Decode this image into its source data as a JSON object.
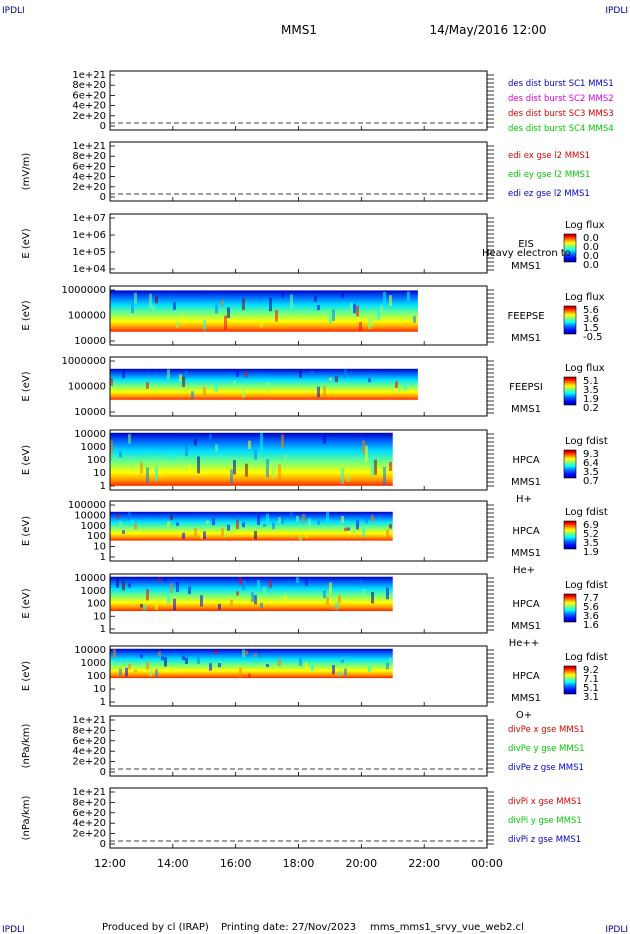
{
  "header": {
    "corner_tl": "IPDLI",
    "corner_tr": "IPDLI",
    "corner_bl": "IPDLI",
    "corner_br": "IPDLI",
    "mission": "MMS1",
    "date": "14/May/2016 12:00"
  },
  "footer": {
    "produced": "Produced by cl (IRAP)",
    "printing": "Printing date: 27/Nov/2023",
    "file": "mms_mms1_srvy_vue_web2.cl"
  },
  "colors": {
    "red": "#dd0000",
    "magenta": "#dd00dd",
    "green": "#00cc00",
    "blue": "#0000cc",
    "colorbar": [
      "#000090",
      "#0000ff",
      "#0080ff",
      "#00ffff",
      "#80ff80",
      "#ffff00",
      "#ff8000",
      "#ff0000",
      "#800000"
    ]
  },
  "chart_data": {
    "type": "heatmap",
    "x": {
      "ticks": [
        "12:00",
        "14:00",
        "16:00",
        "18:00",
        "20:00",
        "22:00",
        "00:00"
      ],
      "range_hours": [
        12,
        24
      ]
    },
    "panels": [
      {
        "kind": "line",
        "ylabel": "",
        "ticks": [
          "1e+21",
          "8e+20",
          "6e+20",
          "4e+20",
          "2e+20",
          "0"
        ],
        "ylim": [
          0,
          1e+21
        ],
        "legend": [
          {
            "text": "des dist burst SC1 MMS1",
            "color": "blue"
          },
          {
            "text": "des dist burst SC2 MMS2",
            "color": "magenta"
          },
          {
            "text": "des dist burst SC3 MMS3",
            "color": "red"
          },
          {
            "text": "des dist burst SC4 MMS4",
            "color": "green"
          }
        ]
      },
      {
        "kind": "line",
        "ylabel": "(mV/m)",
        "ticks": [
          "1e+21",
          "8e+20",
          "6e+20",
          "4e+20",
          "2e+20",
          "0"
        ],
        "ylim": [
          0,
          1e+21
        ],
        "legend": [
          {
            "text": "edi ex gse l2 MMS1",
            "color": "red"
          },
          {
            "text": "edi ey gse l2 MMS1",
            "color": "green"
          },
          {
            "text": "edi ez gse l2 MMS1",
            "color": "blue"
          }
        ]
      },
      {
        "kind": "spectrogram",
        "ylabel": "E (eV)",
        "ticks": [
          "1e+07",
          "1e+06",
          "1e+05",
          "1e+04"
        ],
        "log_range": [
          4,
          7
        ],
        "instrument": "EIS",
        "sc": "MMS1",
        "species": "",
        "extra": "Heavy electron to",
        "cb_title": "Log flux",
        "cb_values": [
          "0.0",
          "0.0",
          "0.0",
          "0.0"
        ],
        "coverage": {
          "start": 12,
          "end": 12,
          "ymin": 4,
          "ymax": 7
        }
      },
      {
        "kind": "spectrogram",
        "ylabel": "E (eV)",
        "ticks": [
          "1000000",
          "100000",
          "10000"
        ],
        "log_range": [
          4,
          6
        ],
        "instrument": "FEEPSE",
        "sc": "MMS1",
        "species": "",
        "extra": "",
        "cb_title": "Log flux",
        "cb_values": [
          "5.6",
          "3.6",
          "1.5",
          "-0.5"
        ],
        "coverage": {
          "start": 12,
          "end": 21.8,
          "ymin": 4.45,
          "ymax": 5.85
        }
      },
      {
        "kind": "spectrogram",
        "ylabel": "E (eV)",
        "ticks": [
          "1000000",
          "100000",
          "10000"
        ],
        "log_range": [
          4,
          6
        ],
        "instrument": "FEEPSI",
        "sc": "MMS1",
        "species": "",
        "extra": "",
        "cb_title": "Log flux",
        "cb_values": [
          "5.1",
          "3.5",
          "1.9",
          "0.2"
        ],
        "coverage": {
          "start": 12,
          "end": 21.8,
          "ymin": 4.55,
          "ymax": 5.6
        }
      },
      {
        "kind": "spectrogram",
        "ylabel": "E (eV)",
        "ticks": [
          "10000",
          "1000",
          "100",
          "10",
          "1"
        ],
        "log_range": [
          0,
          4.3
        ],
        "instrument": "HPCA",
        "sc": "MMS1",
        "species": "H+",
        "extra": "",
        "cb_title": "Log fdist",
        "cb_values": [
          "9.3",
          "6.4",
          "3.5",
          "0.7"
        ],
        "coverage": {
          "start": 12,
          "end": 21,
          "ymin": 0.3,
          "ymax": 4.1
        }
      },
      {
        "kind": "spectrogram",
        "ylabel": "E (eV)",
        "ticks": [
          "100000",
          "10000",
          "1000",
          "100",
          "10",
          "1"
        ],
        "log_range": [
          0,
          5
        ],
        "instrument": "HPCA",
        "sc": "MMS1",
        "species": "He+",
        "extra": "",
        "cb_title": "Log fdist",
        "cb_values": [
          "6.9",
          "5.2",
          "3.5",
          "1.9"
        ],
        "coverage": {
          "start": 12,
          "end": 21,
          "ymin": 1.7,
          "ymax": 4.1
        }
      },
      {
        "kind": "spectrogram",
        "ylabel": "E (eV)",
        "ticks": [
          "10000",
          "1000",
          "100",
          "10",
          "1"
        ],
        "log_range": [
          0,
          4.3
        ],
        "instrument": "HPCA",
        "sc": "MMS1",
        "species": "He++",
        "extra": "",
        "cb_title": "Log fdist",
        "cb_values": [
          "7.7",
          "5.6",
          "3.6",
          "1.6"
        ],
        "coverage": {
          "start": 12,
          "end": 21,
          "ymin": 1.6,
          "ymax": 4.1
        }
      },
      {
        "kind": "spectrogram",
        "ylabel": "E (eV)",
        "ticks": [
          "10000",
          "1000",
          "100",
          "10",
          "1"
        ],
        "log_range": [
          0,
          4.3
        ],
        "instrument": "HPCA",
        "sc": "MMS1",
        "species": "O+",
        "extra": "",
        "cb_title": "Log fdist",
        "cb_values": [
          "9.2",
          "7.1",
          "5.1",
          "3.1"
        ],
        "coverage": {
          "start": 12,
          "end": 21,
          "ymin": 2,
          "ymax": 4.1
        }
      },
      {
        "kind": "line",
        "ylabel": "(nPa/km)",
        "ticks": [
          "1e+21",
          "8e+20",
          "6e+20",
          "4e+20",
          "2e+20",
          "0"
        ],
        "ylim": [
          0,
          1e+21
        ],
        "legend": [
          {
            "text": "divPe x gse MMS1",
            "color": "red"
          },
          {
            "text": "divPe y gse MMS1",
            "color": "green"
          },
          {
            "text": "divPe z gse MMS1",
            "color": "blue"
          }
        ]
      },
      {
        "kind": "line",
        "ylabel": "(nPa/km)",
        "ticks": [
          "1e+21",
          "8e+20",
          "6e+20",
          "4e+20",
          "2e+20",
          "0"
        ],
        "ylim": [
          0,
          1e+21
        ],
        "legend": [
          {
            "text": "divPi x gse MMS1",
            "color": "red"
          },
          {
            "text": "divPi y gse MMS1",
            "color": "green"
          },
          {
            "text": "divPi z gse MMS1",
            "color": "blue"
          }
        ]
      }
    ]
  }
}
